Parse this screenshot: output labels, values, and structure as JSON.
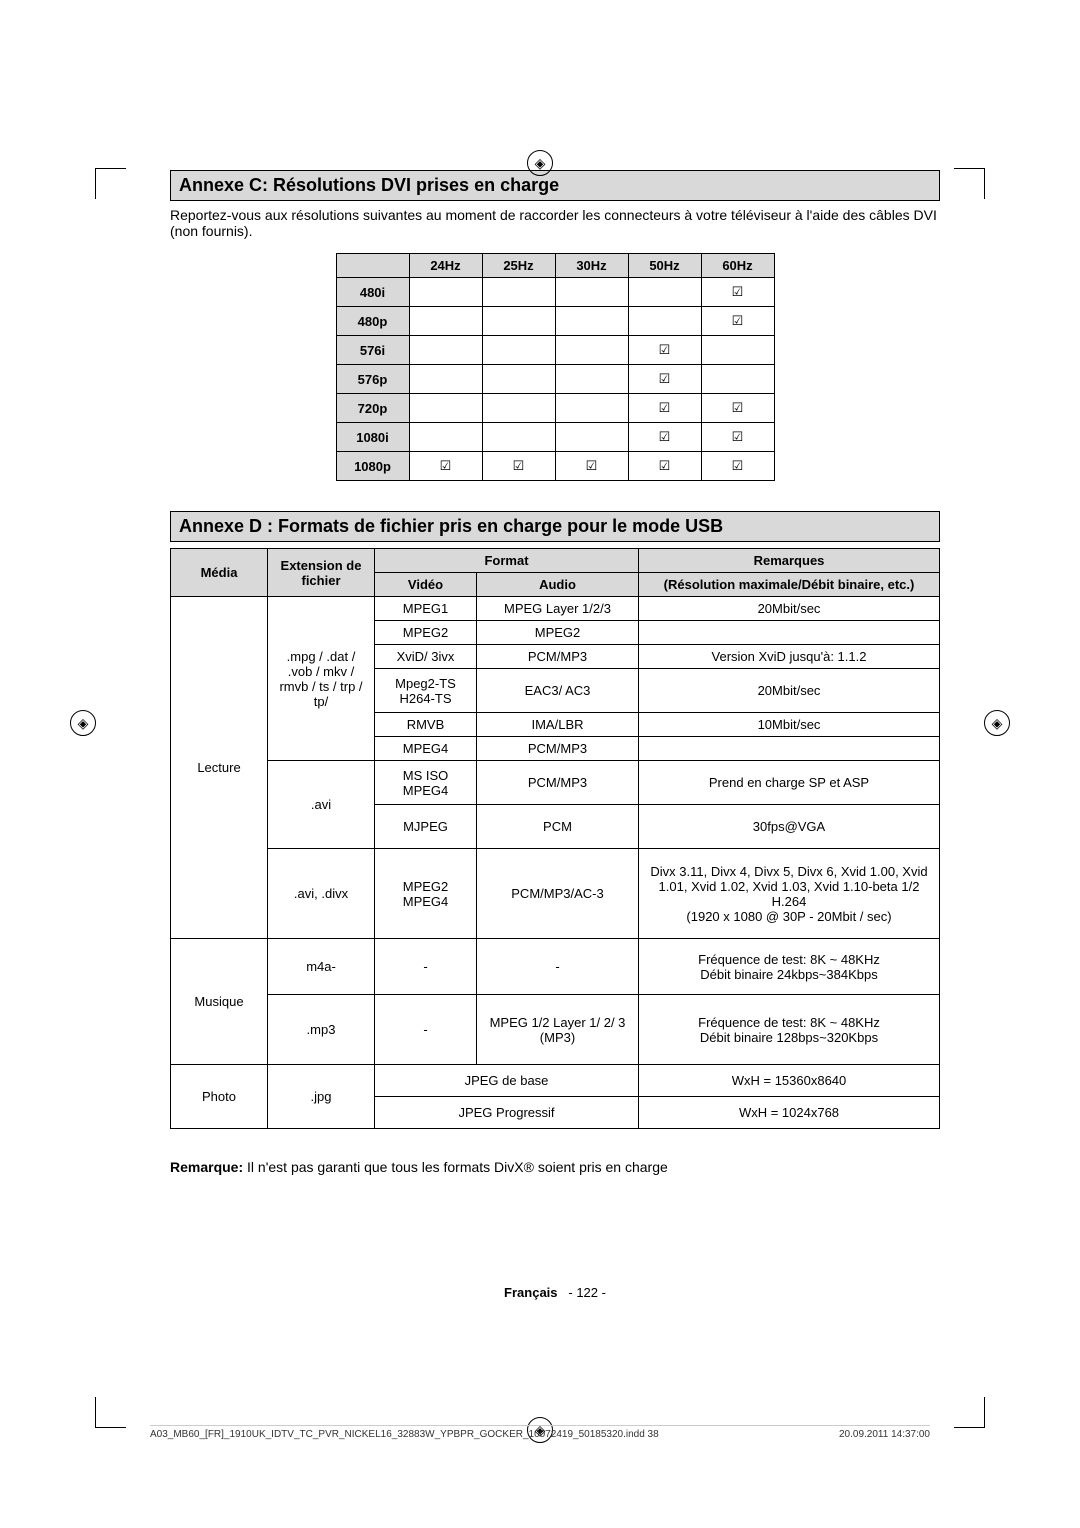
{
  "annexC": {
    "title": "Annexe C: Résolutions DVI prises en charge",
    "intro": "Reportez-vous aux résolutions suivantes au moment de raccorder les connecteurs à votre téléviseur à l'aide des câbles DVI (non fournis).",
    "cols": [
      "24Hz",
      "25Hz",
      "30Hz",
      "50Hz",
      "60Hz"
    ],
    "rows": [
      {
        "label": "480i",
        "cells": [
          "",
          "",
          "",
          "",
          "☑"
        ]
      },
      {
        "label": "480p",
        "cells": [
          "",
          "",
          "",
          "",
          "☑"
        ]
      },
      {
        "label": "576i",
        "cells": [
          "",
          "",
          "",
          "☑",
          ""
        ]
      },
      {
        "label": "576p",
        "cells": [
          "",
          "",
          "",
          "☑",
          ""
        ]
      },
      {
        "label": "720p",
        "cells": [
          "",
          "",
          "",
          "☑",
          "☑"
        ]
      },
      {
        "label": "1080i",
        "cells": [
          "",
          "",
          "",
          "☑",
          "☑"
        ]
      },
      {
        "label": "1080p",
        "cells": [
          "☑",
          "☑",
          "☑",
          "☑",
          "☑"
        ]
      }
    ]
  },
  "annexD": {
    "title": "Annexe D : Formats de fichier pris en charge pour le mode USB",
    "header": {
      "media": "Média",
      "ext": "Extension de fichier",
      "format": "Format",
      "video": "Vidéo",
      "audio": "Audio",
      "remarks": "Remarques",
      "remarks_sub": "(Résolution maximale/Débit binaire, etc.)"
    },
    "lecture_label": "Lecture",
    "lecture_ext1": ".mpg / .dat / .vob / mkv / rmvb / ts / trp / tp/",
    "lecture_rows1": [
      {
        "video": "MPEG1",
        "audio": "MPEG Layer 1/2/3",
        "remark": "20Mbit/sec"
      },
      {
        "video": "MPEG2",
        "audio": "MPEG2",
        "remark": ""
      },
      {
        "video": "XviD/ 3ivx",
        "audio": "PCM/MP3",
        "remark": "Version XviD jusqu'à: 1.1.2"
      },
      {
        "video": "Mpeg2-TS H264-TS",
        "audio": "EAC3/ AC3",
        "remark": "20Mbit/sec"
      },
      {
        "video": "RMVB",
        "audio": "IMA/LBR",
        "remark": "10Mbit/sec"
      },
      {
        "video": "MPEG4",
        "audio": "PCM/MP3",
        "remark": ""
      }
    ],
    "lecture_ext2": ".avi",
    "lecture_rows2": [
      {
        "video": "MS ISO MPEG4",
        "audio": "PCM/MP3",
        "remark": "Prend en charge SP et ASP"
      },
      {
        "video": "MJPEG",
        "audio": "PCM",
        "remark": "30fps@VGA"
      }
    ],
    "lecture_ext3": ".avi, .divx",
    "lecture_rows3": [
      {
        "video": "MPEG2 MPEG4",
        "audio": "PCM/MP3/AC-3",
        "remark": "Divx 3.11, Divx 4, Divx 5, Divx 6, Xvid 1.00, Xvid 1.01, Xvid 1.02, Xvid 1.03, Xvid 1.10-beta 1/2 H.264\n(1920 x 1080 @ 30P - 20Mbit / sec)"
      }
    ],
    "musique_label": "Musique",
    "musique_rows": [
      {
        "ext": "m4a-",
        "video": "-",
        "audio": "-",
        "remark": "Fréquence de test: 8K ~ 48KHz\nDébit binaire 24kbps~384Kbps"
      },
      {
        "ext": ".mp3",
        "video": "-",
        "audio": "MPEG 1/2 Layer 1/ 2/ 3 (MP3)",
        "remark": "Fréquence de test: 8K ~ 48KHz\nDébit binaire 128bps~320Kbps"
      }
    ],
    "photo_label": "Photo",
    "photo_ext": ".jpg",
    "photo_rows": [
      {
        "format": "JPEG de base",
        "remark": "WxH = 15360x8640"
      },
      {
        "format": "JPEG Progressif",
        "remark": "WxH = 1024x768"
      }
    ],
    "note_label": "Remarque:",
    "note_text": "Il n'est pas garanti que tous les formats DivX® soient pris en charge"
  },
  "footer": {
    "lang": "Français",
    "page": "- 122 -"
  },
  "docinfo": {
    "file": "A03_MB60_[FR]_1910UK_IDTV_TC_PVR_NICKEL16_32883W_YPBPR_GOCKER_10072419_50185320.indd   38",
    "ts": "20.09.2011   14:37:00"
  }
}
